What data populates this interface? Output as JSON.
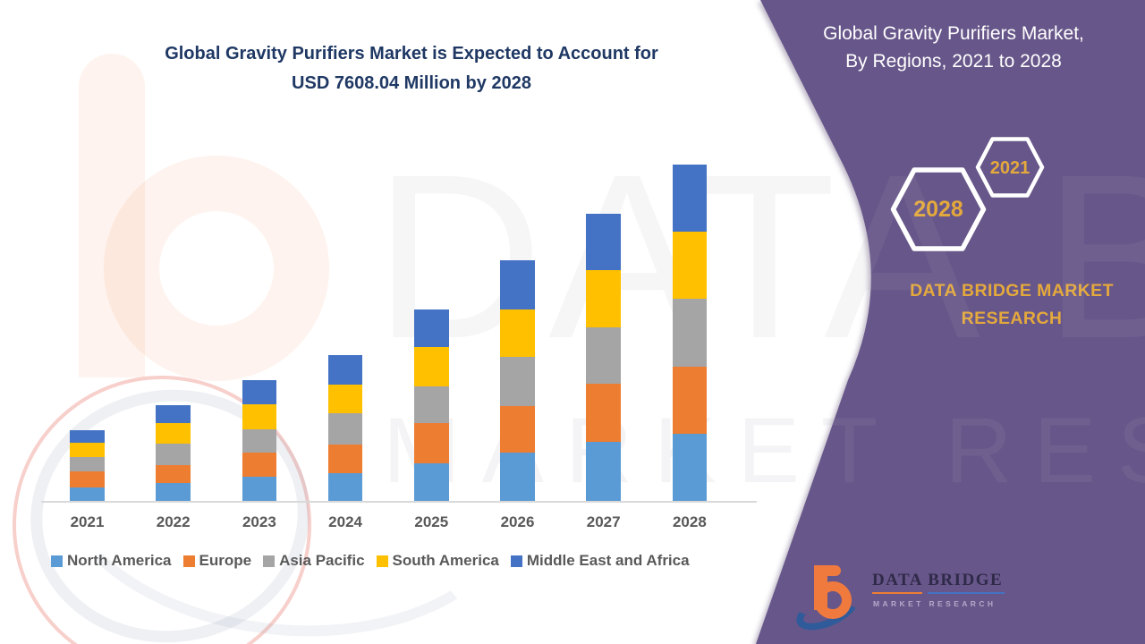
{
  "chart": {
    "title_line1": "Global Gravity Purifiers Market is Expected to Account for",
    "title_line2": "USD 7608.04 Million by 2028",
    "title_color": "#1F3864"
  },
  "chart_data": {
    "type": "bar",
    "stacked": true,
    "title": "Global Gravity Purifiers Market is Expected to Account for USD 7608.04 Million by 2028",
    "xlabel": "",
    "ylabel": "",
    "value_unit": "USD Million",
    "ylim": [
      0,
      7608.04
    ],
    "grid": false,
    "legend_position": "bottom",
    "categories": [
      "2021",
      "2022",
      "2023",
      "2024",
      "2025",
      "2026",
      "2027",
      "2028"
    ],
    "series": [
      {
        "name": "North America",
        "color": "#5B9BD5",
        "values": [
          324,
          426,
          561,
          655,
          864,
          1101,
          1350,
          1540
        ]
      },
      {
        "name": "Europe",
        "color": "#ED7D31",
        "values": [
          371,
          405,
          553,
          643,
          912,
          1060,
          1305,
          1500
        ]
      },
      {
        "name": "Asia Pacific",
        "color": "#A5A5A5",
        "values": [
          304,
          472,
          527,
          695,
          831,
          1103,
          1283,
          1540
        ]
      },
      {
        "name": "South America",
        "color": "#FFC000",
        "values": [
          339,
          472,
          553,
          643,
          880,
          1066,
          1283,
          1520
        ]
      },
      {
        "name": "Middle East and Africa",
        "color": "#4472C4",
        "values": [
          284,
          405,
          555,
          663,
          857,
          1129,
          1285,
          1508.04
        ]
      }
    ],
    "totals": [
      1622,
      2180,
      2749,
      3299,
      4344,
      5459,
      6506,
      7608.04
    ]
  },
  "panel": {
    "title_line1": "Global Gravity Purifiers Market,",
    "title_line2": "By Regions, 2021 to 2028",
    "badges": [
      {
        "label": "2028"
      },
      {
        "label": "2021"
      }
    ],
    "brand_line1": "DATA BRIDGE MARKET",
    "brand_line2": "RESEARCH",
    "colors": {
      "panel_purple": "#675689",
      "gold": "#E4A93C"
    }
  },
  "logo": {
    "title": "DATA BRIDGE",
    "subtitle": "MARKET RESEARCH"
  },
  "watermark": {
    "large_text": "DATA BRIDGE",
    "mid_text": "MARKET RESEARCH"
  }
}
